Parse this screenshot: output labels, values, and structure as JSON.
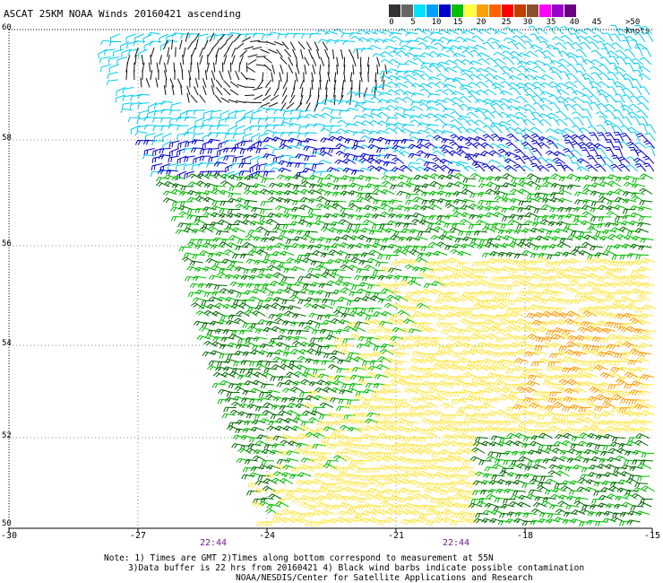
{
  "title": "ASCAT 25KM NOAA Winds 20160421 ascending",
  "legend": {
    "colors": [
      "#333333",
      "#666666",
      "#00e0ff",
      "#00a0ff",
      "#0000cc",
      "#00c000",
      "#ffff40",
      "#ffa000",
      "#ff6000",
      "#ff0000",
      "#c04000",
      "#8b5030",
      "#ff00ff",
      "#9900cc",
      "#6a0080"
    ],
    "labels": [
      "0",
      "5",
      "10",
      "15",
      "20",
      "25",
      "30",
      "35",
      "40",
      "45",
      ">50 knots"
    ]
  },
  "axes": {
    "lat_labels": [
      "60",
      "58",
      "56",
      "54",
      "52",
      "50"
    ],
    "lon_labels": [
      "-30",
      "-27",
      "-24",
      "-21",
      "-18",
      "-15"
    ]
  },
  "times": [
    "22:44",
    "22:44"
  ],
  "notes": {
    "line1": "Note: 1) Times are GMT 2)Times along bottom correspond to measurement at 55N",
    "line2": "3)Data buffer is 22 hrs from 20160421 4) Black wind barbs indicate possible contamination",
    "line3": "NOAA/NESDIS/Center for Satellite Applications and Research"
  },
  "wind_colors": {
    "contamination": "#111111",
    "light": "#00ccee",
    "moderate": "#0000cc",
    "fresh": "#00bb00",
    "strong": "#ffe640",
    "gale": "#ff9900",
    "dark_green": "#006600"
  }
}
